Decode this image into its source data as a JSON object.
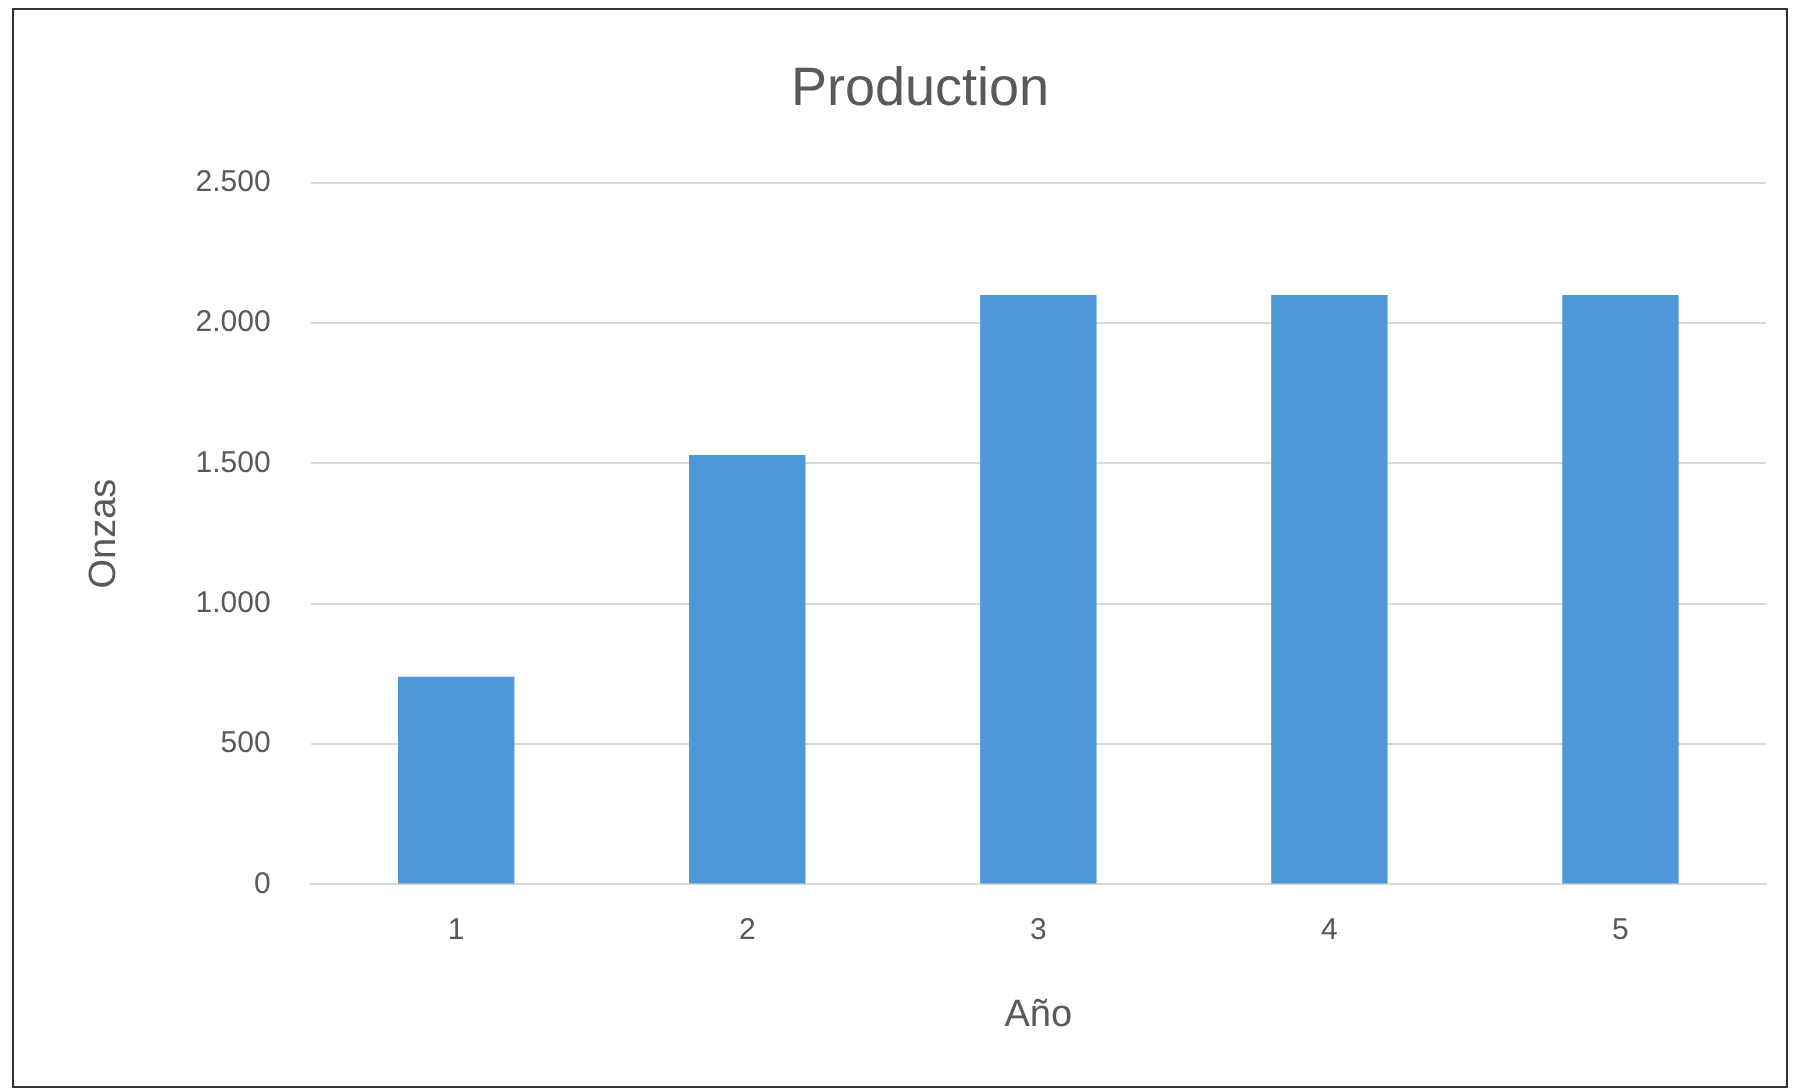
{
  "chart_data": {
    "type": "bar",
    "title": "Production",
    "xlabel": "Año",
    "ylabel": "Onzas",
    "categories": [
      "1",
      "2",
      "3",
      "4",
      "5"
    ],
    "values": [
      740,
      1530,
      2100,
      2100,
      2100
    ],
    "color": "#4e98da",
    "ylim": [
      0,
      2500
    ],
    "yticks": [
      0,
      500,
      {
        "value": 1000,
        "label": "1.000"
      },
      {
        "value": 1500,
        "label": "1.500"
      },
      {
        "value": 2000,
        "label": "2.000"
      },
      {
        "value": 2500,
        "label": "2.500"
      }
    ],
    "grid": "y",
    "legend": false
  }
}
